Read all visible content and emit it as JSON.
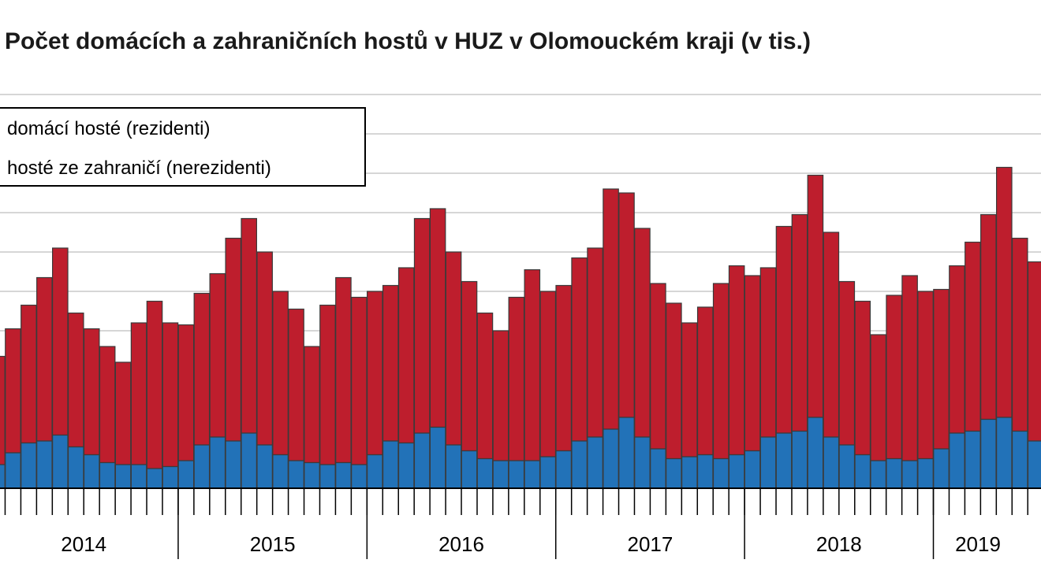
{
  "colors": {
    "domestic": "#2272b8",
    "foreign": "#be1e2d",
    "outline": "#3a3a3a",
    "grid": "#c8c8c8"
  },
  "chart_data": {
    "type": "bar",
    "stacked": true,
    "title": "Počet domácích a zahraničních hostů  v HUZ  v Olomouckém kraji (v tis.)",
    "grid": true,
    "legend_position": "top-left",
    "year_labels": [
      "2014",
      "2015",
      "2016",
      "2017",
      "2018",
      "2019"
    ],
    "series": [
      {
        "name": "domácí hosté (rezidenti)",
        "values": [
          1.2,
          1.8,
          2.3,
          2.4,
          2.7,
          2.1,
          1.7,
          1.3,
          1.2,
          1.2,
          1.0,
          1.1,
          1.4,
          2.2,
          2.6,
          2.4,
          2.8,
          2.2,
          1.7,
          1.4,
          1.3,
          1.2,
          1.3,
          1.2,
          1.7,
          2.4,
          2.3,
          2.8,
          3.1,
          2.2,
          1.9,
          1.5,
          1.4,
          1.4,
          1.4,
          1.6,
          1.9,
          2.4,
          2.6,
          3.0,
          3.6,
          2.6,
          2.0,
          1.5,
          1.6,
          1.7,
          1.5,
          1.7,
          1.9,
          2.6,
          2.8,
          2.9,
          3.6,
          2.6,
          2.2,
          1.7,
          1.4,
          1.5,
          1.4,
          1.5,
          2.0,
          2.8,
          2.9,
          3.5,
          3.6,
          2.9,
          2.4
        ]
      },
      {
        "name": "hosté ze zahraničí (nerezidenti)",
        "values": [
          5.5,
          6.3,
          7.0,
          8.3,
          9.5,
          6.8,
          6.4,
          5.9,
          5.2,
          7.2,
          8.5,
          7.3,
          6.9,
          7.7,
          8.3,
          10.3,
          10.9,
          9.8,
          8.3,
          7.7,
          5.9,
          8.1,
          9.4,
          8.5,
          8.3,
          7.9,
          8.9,
          10.9,
          11.1,
          9.8,
          8.6,
          7.4,
          6.6,
          8.3,
          9.7,
          8.4,
          8.4,
          9.3,
          9.6,
          12.2,
          11.4,
          10.6,
          8.4,
          7.9,
          6.8,
          7.5,
          8.9,
          9.6,
          8.9,
          8.6,
          10.5,
          11.0,
          12.3,
          10.4,
          8.3,
          7.8,
          6.4,
          8.3,
          9.4,
          8.5,
          8.1,
          8.5,
          9.6,
          10.4,
          12.7,
          9.8,
          9.1
        ]
      }
    ]
  }
}
